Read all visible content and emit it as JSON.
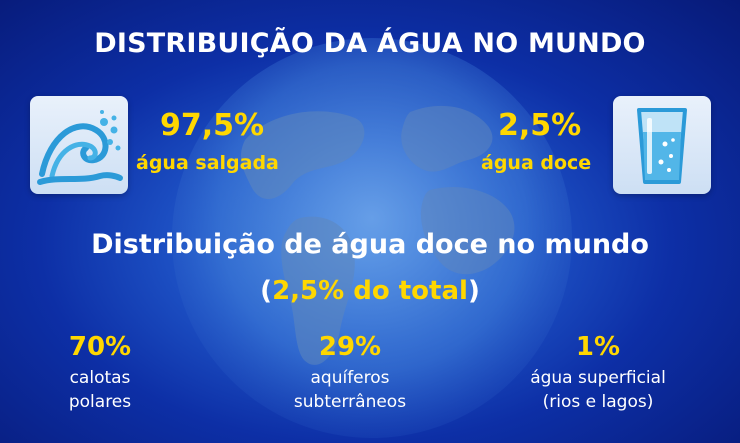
{
  "title": "DISTRIBUIÇÃO DA ÁGUA NO MUNDO",
  "salt": {
    "icon": "ocean-wave-icon",
    "percent": "97,5%",
    "label": "água salgada"
  },
  "fresh": {
    "icon": "glass-of-water-icon",
    "percent": "2,5%",
    "label": "água doce"
  },
  "freshwater_section": {
    "title": "Distribuição de água doce no mundo",
    "note_open": "(",
    "note_highlight": "2,5% do total",
    "note_close": ")"
  },
  "breakdown": [
    {
      "percent": "70%",
      "line1": "calotas",
      "line2": "polares"
    },
    {
      "percent": "29%",
      "line1": "aquíferos",
      "line2": "subterrâneos"
    },
    {
      "percent": "1%",
      "line1": "água superficial",
      "line2": "(rios e lagos)"
    }
  ],
  "colors": {
    "accent": "#ffd700",
    "text": "#ffffff",
    "background": "#0d2fa6"
  }
}
